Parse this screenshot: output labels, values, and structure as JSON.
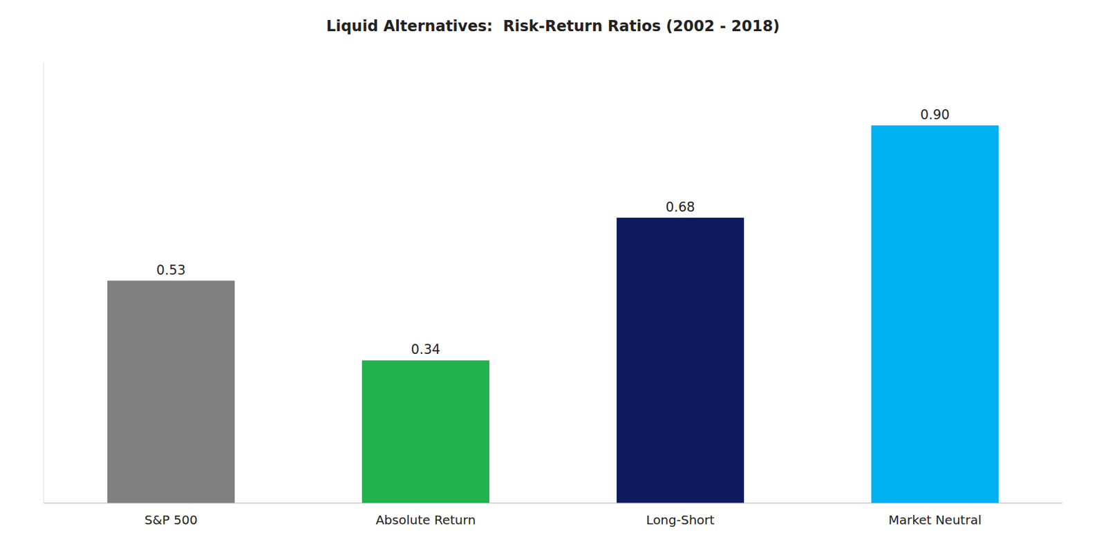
{
  "chart_data": {
    "type": "bar",
    "title": "Liquid Alternatives:  Risk-Return Ratios (2002 - 2018)",
    "categories": [
      "S&P 500",
      "Absolute Return",
      "Long-Short",
      "Market Neutral"
    ],
    "values": [
      0.53,
      0.34,
      0.68,
      0.9
    ],
    "value_labels": [
      "0.53",
      "0.34",
      "0.68",
      "0.90"
    ],
    "colors": [
      "#808080",
      "#22b14c",
      "#0d1b5e",
      "#00b0f0"
    ],
    "ylim": [
      0,
      1.05
    ],
    "grid": false,
    "data_labels": true,
    "tick_labels": "x"
  }
}
